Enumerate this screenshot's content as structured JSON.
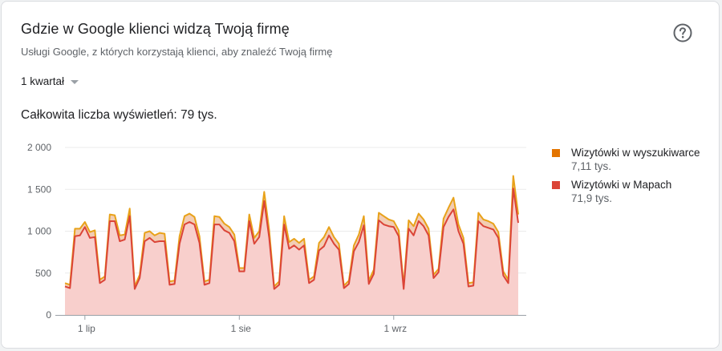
{
  "header": {
    "title": "Gdzie w Google klienci widzą Twoją firmę",
    "subtitle": "Usługi Google, z których korzystają klienci, aby znaleźć Twoją firmę",
    "help_icon": "help-circle-icon"
  },
  "filter": {
    "period_label": "1 kwartał",
    "dropdown_icon": "caret-down-icon"
  },
  "summary": {
    "total_label": "Całkowita liczba wyświetleń: 79 tys."
  },
  "legend": [
    {
      "name": "Wizytówki w wyszukiwarce",
      "value": "7,11 tys.",
      "color": "#e37400"
    },
    {
      "name": "Wizytówki w Mapach",
      "value": "71,9 tys.",
      "color": "#db4437"
    }
  ],
  "colors": {
    "search_line": "#e8a21a",
    "search_fill": "#f2cdb4",
    "maps_line": "#db4437",
    "maps_fill": "#f8cfcc",
    "grid": "#ebebeb",
    "axis": "#9aa0a6"
  },
  "chart_data": {
    "type": "area",
    "stacked": true,
    "ylim": [
      0,
      2000
    ],
    "yticks": [
      0,
      500,
      1000,
      1500,
      2000
    ],
    "ytick_labels": [
      "0",
      "500",
      "1 000",
      "1 500",
      "2 000"
    ],
    "xtick_labels": [
      "1 lip",
      "1 sie",
      "1 wrz"
    ],
    "xtick_positions": [
      4,
      35,
      66
    ],
    "x_start": "2019-06-27",
    "grid": true,
    "legend_position": "right",
    "series": [
      {
        "name": "Wizytówki w Mapach",
        "values": [
          340,
          320,
          940,
          950,
          1050,
          920,
          930,
          380,
          420,
          1120,
          1120,
          880,
          900,
          1180,
          310,
          440,
          880,
          920,
          870,
          880,
          880,
          360,
          370,
          850,
          1080,
          1110,
          1080,
          860,
          360,
          380,
          1080,
          1080,
          1010,
          980,
          880,
          520,
          520,
          1120,
          850,
          930,
          1360,
          920,
          310,
          360,
          1080,
          790,
          830,
          780,
          830,
          380,
          420,
          770,
          820,
          950,
          850,
          780,
          320,
          370,
          760,
          870,
          1070,
          370,
          490,
          1130,
          1080,
          1060,
          1050,
          940,
          310,
          1030,
          950,
          1120,
          1060,
          950,
          440,
          510,
          1050,
          1170,
          1260,
          1000,
          850,
          340,
          350,
          1120,
          1060,
          1040,
          1020,
          920,
          470,
          380,
          1510,
          1100
        ],
        "search_values": [
          40,
          40,
          90,
          80,
          60,
          70,
          80,
          40,
          40,
          80,
          70,
          70,
          60,
          90,
          30,
          40,
          100,
          80,
          80,
          100,
          90,
          40,
          40,
          90,
          100,
          100,
          90,
          80,
          40,
          40,
          100,
          90,
          80,
          70,
          80,
          40,
          40,
          80,
          70,
          70,
          110,
          90,
          30,
          40,
          100,
          80,
          80,
          80,
          80,
          40,
          40,
          90,
          110,
          100,
          80,
          70,
          30,
          40,
          70,
          90,
          110,
          40,
          50,
          90,
          100,
          80,
          70,
          70,
          40,
          100,
          110,
          90,
          80,
          80,
          40,
          40,
          100,
          110,
          140,
          80,
          70,
          40,
          40,
          100,
          80,
          80,
          70,
          70,
          50,
          40,
          150,
          100
        ]
      },
      {
        "name": "Wizytówki w wyszukiwarce",
        "values": [
          40,
          40,
          90,
          80,
          60,
          70,
          80,
          40,
          40,
          80,
          70,
          70,
          60,
          90,
          30,
          40,
          100,
          80,
          80,
          100,
          90,
          40,
          40,
          90,
          100,
          100,
          90,
          80,
          40,
          40,
          100,
          90,
          80,
          70,
          80,
          40,
          40,
          80,
          70,
          70,
          110,
          90,
          30,
          40,
          100,
          80,
          80,
          80,
          80,
          40,
          40,
          90,
          110,
          100,
          80,
          70,
          30,
          40,
          70,
          90,
          110,
          40,
          50,
          90,
          100,
          80,
          70,
          70,
          40,
          100,
          110,
          90,
          80,
          80,
          40,
          40,
          100,
          110,
          140,
          80,
          70,
          40,
          40,
          100,
          80,
          80,
          70,
          70,
          50,
          40,
          150,
          100
        ]
      }
    ]
  }
}
